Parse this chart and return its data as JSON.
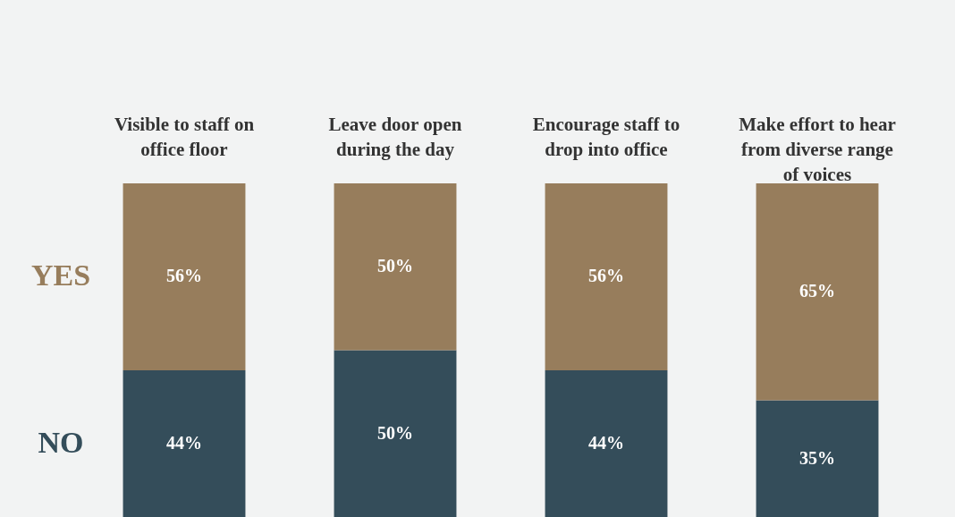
{
  "chart_data": {
    "type": "bar",
    "stacked": true,
    "legend": false,
    "categories": [
      "Visible to staff on office floor",
      "Leave door open during the day",
      "Encourage staff to drop into office",
      "Make effort to hear from diverse range of voices"
    ],
    "ylim": [
      0,
      100
    ],
    "series": [
      {
        "name": "NO",
        "color": "#344d5a",
        "values": [
          44,
          50,
          44,
          35
        ],
        "value_labels": [
          "44%",
          "50%",
          "44%",
          "35%"
        ]
      },
      {
        "name": "YES",
        "color": "#977d5c",
        "values": [
          56,
          50,
          56,
          65
        ],
        "value_labels": [
          "56%",
          "50%",
          "56%",
          "65%"
        ]
      }
    ]
  }
}
